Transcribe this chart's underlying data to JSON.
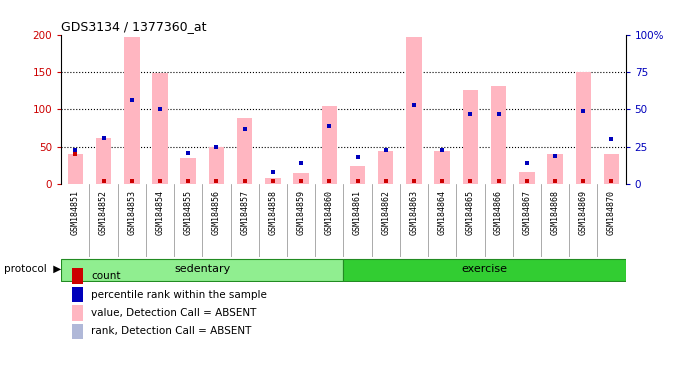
{
  "title": "GDS3134 / 1377360_at",
  "samples": [
    "GSM184851",
    "GSM184852",
    "GSM184853",
    "GSM184854",
    "GSM184855",
    "GSM184856",
    "GSM184857",
    "GSM184858",
    "GSM184859",
    "GSM184860",
    "GSM184861",
    "GSM184862",
    "GSM184863",
    "GSM184864",
    "GSM184865",
    "GSM184866",
    "GSM184867",
    "GSM184868",
    "GSM184869",
    "GSM184870"
  ],
  "value_pink": [
    40,
    62,
    197,
    149,
    35,
    50,
    88,
    9,
    15,
    105,
    25,
    44,
    197,
    45,
    126,
    131,
    16,
    40,
    150,
    40
  ],
  "rank_absent_pct": [
    23,
    31,
    56,
    50,
    21,
    25,
    37,
    8,
    14,
    39,
    18,
    23,
    53,
    23,
    47,
    47,
    14,
    19,
    49,
    30
  ],
  "count_red_left": [
    40,
    4,
    4,
    4,
    4,
    4,
    4,
    4,
    4,
    4,
    4,
    4,
    4,
    4,
    4,
    4,
    4,
    4,
    4,
    4
  ],
  "rank_blue_pct": [
    23,
    31,
    56,
    50,
    21,
    25,
    37,
    8,
    14,
    39,
    18,
    23,
    53,
    23,
    47,
    47,
    14,
    19,
    49,
    30
  ],
  "ylim_left": [
    0,
    200
  ],
  "ylim_right": [
    0,
    100
  ],
  "yticks_left": [
    0,
    50,
    100,
    150,
    200
  ],
  "yticks_right": [
    0,
    25,
    50,
    75,
    100
  ],
  "ytick_labels_right": [
    "0",
    "25",
    "50",
    "75",
    "100%"
  ],
  "legend_colors": [
    "#cc0000",
    "#0000bb",
    "#ffb6c1",
    "#b0b8d8"
  ],
  "legend_labels": [
    "count",
    "percentile rank within the sample",
    "value, Detection Call = ABSENT",
    "rank, Detection Call = ABSENT"
  ]
}
